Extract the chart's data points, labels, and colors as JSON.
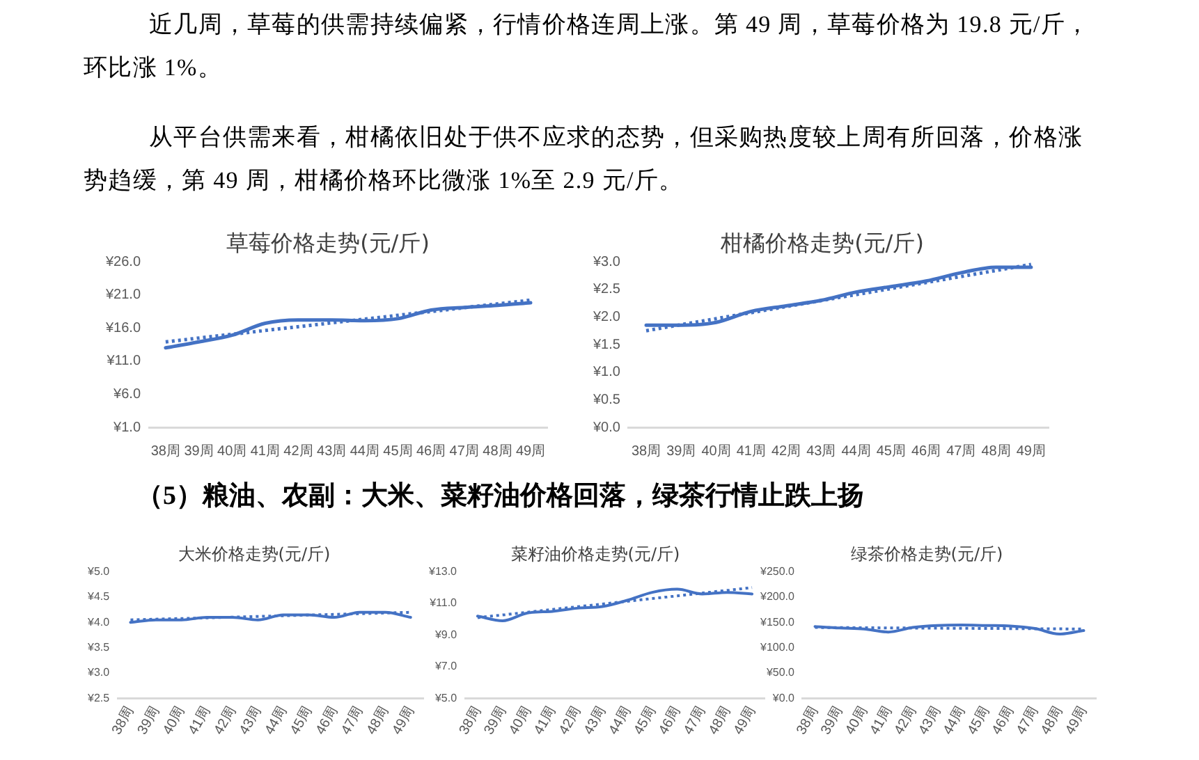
{
  "chart_data": [
    {
      "type": "other",
      "annotations": [
        "近几周，草莓的供需持续偏紧，行情价格连周上涨。第 49 周，草莓价格为 19.8 元/斤，环比涨 1%。",
        "从平台供需来看，柑橘依旧处于供不应求的态势，但采购热度较上周有所回落，价格涨势趋缓，第 49 周，柑橘价格环比微涨 1%至 2.9 元/斤。"
      ]
    },
    {
      "type": "line",
      "title": "草莓价格走势(元/斤)",
      "categories": [
        "38周",
        "39周",
        "40周",
        "41周",
        "42周",
        "43周",
        "44周",
        "45周",
        "46周",
        "47周",
        "48周",
        "49周"
      ],
      "series": [
        {
          "color": "#4472c4",
          "values": [
            13.0,
            13.9,
            14.9,
            16.7,
            17.2,
            17.2,
            17.1,
            17.4,
            18.7,
            19.1,
            19.4,
            19.8
          ]
        },
        {
          "type": "line",
          "color": "#4472c4",
          "line_style": "dotted",
          "x": [
            "38周",
            "49周"
          ],
          "values": [
            13.9,
            20.2
          ]
        }
      ],
      "ylim": [
        1,
        26
      ],
      "yticks": [
        {
          "value": 1,
          "label": "¥1.0"
        },
        {
          "value": 6,
          "label": "¥6.0"
        },
        {
          "value": 11,
          "label": "¥11.0"
        },
        {
          "value": 16,
          "label": "¥16.0"
        },
        {
          "value": 21,
          "label": "¥21.0"
        },
        {
          "value": 26,
          "label": "¥26.0"
        }
      ],
      "grid": false,
      "legend": false
    },
    {
      "type": "line",
      "title": "柑橘价格走势(元/斤)",
      "categories": [
        "38周",
        "39周",
        "40周",
        "41周",
        "42周",
        "43周",
        "44周",
        "45周",
        "46周",
        "47周",
        "48周",
        "49周"
      ],
      "series": [
        {
          "color": "#4472c4",
          "values": [
            1.85,
            1.85,
            1.9,
            2.1,
            2.2,
            2.3,
            2.45,
            2.55,
            2.65,
            2.8,
            2.9,
            2.9
          ]
        },
        {
          "type": "line",
          "color": "#4472c4",
          "line_style": "dotted",
          "x": [
            "38周",
            "49周"
          ],
          "values": [
            1.75,
            2.95
          ]
        }
      ],
      "ylim": [
        0,
        3
      ],
      "yticks": [
        {
          "value": 0,
          "label": "¥0.0"
        },
        {
          "value": 0.5,
          "label": "¥0.5"
        },
        {
          "value": 1,
          "label": "¥1.0"
        },
        {
          "value": 1.5,
          "label": "¥1.5"
        },
        {
          "value": 2,
          "label": "¥2.0"
        },
        {
          "value": 2.5,
          "label": "¥2.5"
        },
        {
          "value": 3,
          "label": "¥3.0"
        }
      ],
      "grid": false,
      "legend": false
    },
    {
      "type": "other",
      "title": "（5）粮油、农副：大米、菜籽油价格回落，绿茶行情止跌上扬"
    },
    {
      "type": "line",
      "title": "大米价格走势(元/斤)",
      "categories": [
        "38周",
        "39周",
        "40周",
        "41周",
        "42周",
        "43周",
        "44周",
        "45周",
        "46周",
        "47周",
        "48周",
        "49周"
      ],
      "series": [
        {
          "color": "#4472c4",
          "values": [
            4.0,
            4.05,
            4.05,
            4.1,
            4.1,
            4.05,
            4.15,
            4.15,
            4.1,
            4.2,
            4.2,
            4.1
          ]
        },
        {
          "type": "line",
          "color": "#4472c4",
          "line_style": "dotted",
          "x": [
            "38周",
            "49周"
          ],
          "values": [
            4.05,
            4.2
          ]
        }
      ],
      "ylim": [
        2.5,
        5
      ],
      "yticks": [
        {
          "value": 2.5,
          "label": "¥2.5"
        },
        {
          "value": 3,
          "label": "¥3.0"
        },
        {
          "value": 3.5,
          "label": "¥3.5"
        },
        {
          "value": 4,
          "label": "¥4.0"
        },
        {
          "value": 4.5,
          "label": "¥4.5"
        },
        {
          "value": 5,
          "label": "¥5.0"
        }
      ],
      "grid": false,
      "legend": false
    },
    {
      "type": "line",
      "title": "菜籽油价格走势(元/斤)",
      "categories": [
        "38周",
        "39周",
        "40周",
        "41周",
        "42周",
        "43周",
        "44周",
        "45周",
        "46周",
        "47周",
        "48周",
        "49周"
      ],
      "series": [
        {
          "color": "#4472c4",
          "values": [
            10.2,
            9.9,
            10.4,
            10.5,
            10.7,
            10.8,
            11.2,
            11.7,
            11.9,
            11.6,
            11.7,
            11.6
          ]
        },
        {
          "type": "line",
          "color": "#4472c4",
          "line_style": "dotted",
          "x": [
            "38周",
            "49周"
          ],
          "values": [
            10.1,
            12.0
          ]
        }
      ],
      "ylim": [
        5,
        13
      ],
      "yticks": [
        {
          "value": 5,
          "label": "¥5.0"
        },
        {
          "value": 7,
          "label": "¥7.0"
        },
        {
          "value": 9,
          "label": "¥9.0"
        },
        {
          "value": 11,
          "label": "¥11.0"
        },
        {
          "value": 13,
          "label": "¥13.0"
        }
      ],
      "grid": false,
      "legend": false
    },
    {
      "type": "line",
      "title": "绿茶价格走势(元/斤)",
      "categories": [
        "38周",
        "39周",
        "40周",
        "41周",
        "42周",
        "43周",
        "44周",
        "45周",
        "46周",
        "47周",
        "48周",
        "49周"
      ],
      "series": [
        {
          "color": "#4472c4",
          "values": [
            142,
            139,
            137,
            131,
            140,
            144,
            145,
            144,
            143,
            138,
            127,
            134
          ]
        },
        {
          "type": "line",
          "color": "#4472c4",
          "line_style": "dotted",
          "x": [
            "38周",
            "49周"
          ],
          "values": [
            140,
            137
          ]
        }
      ],
      "ylim": [
        0,
        250
      ],
      "yticks": [
        {
          "value": 0,
          "label": "¥0.0"
        },
        {
          "value": 50,
          "label": "¥50.0"
        },
        {
          "value": 100,
          "label": "¥100.0"
        },
        {
          "value": 150,
          "label": "¥150.0"
        },
        {
          "value": 200,
          "label": "¥200.0"
        },
        {
          "value": 250,
          "label": "¥250.0"
        }
      ],
      "grid": false,
      "legend": false
    }
  ]
}
